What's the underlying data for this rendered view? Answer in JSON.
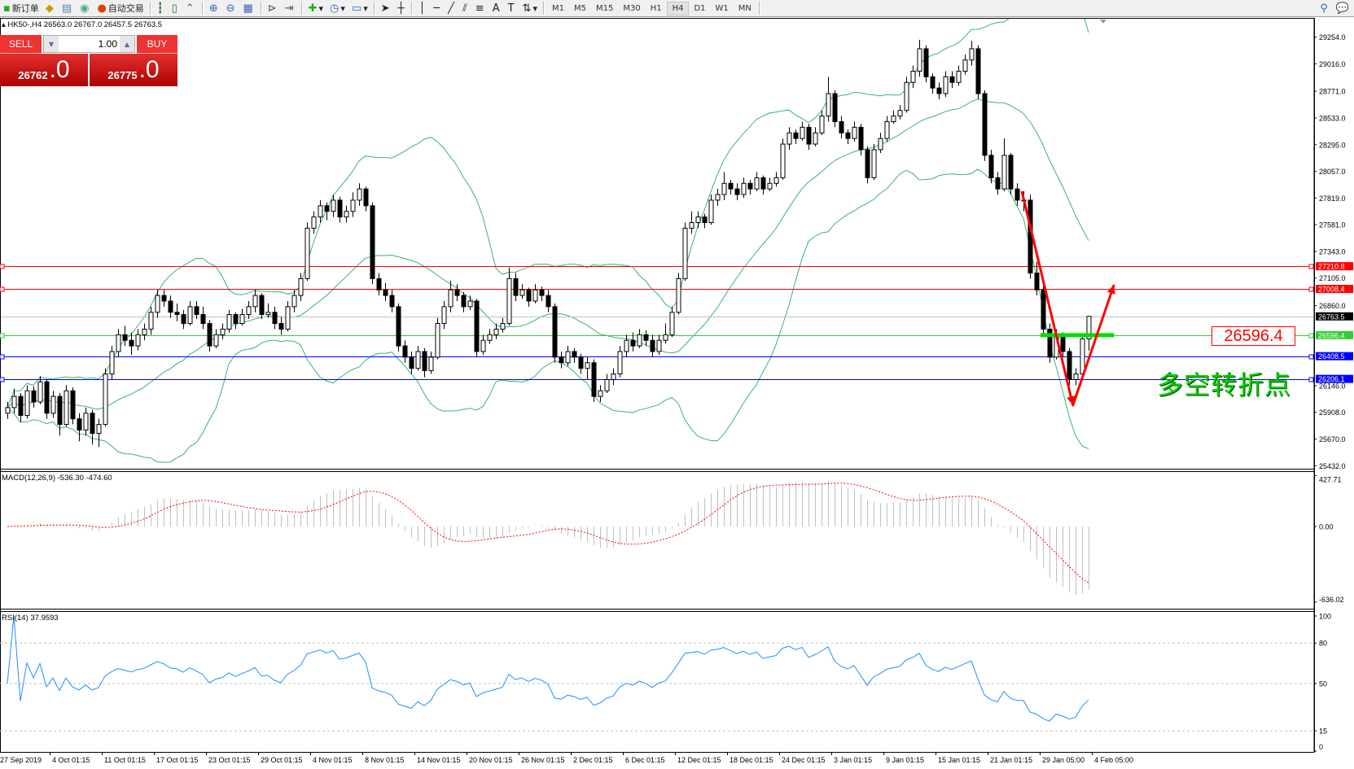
{
  "toolbar": {
    "new_order_label": "新订单",
    "auto_trading_label": "自动交易",
    "icons": [
      "new-order-icon",
      "market-watch-icon",
      "data-window-icon",
      "navigator-icon",
      "auto-trading-icon",
      "bar-chart-icon",
      "candlestick-icon",
      "line-chart-icon",
      "zoom-in-icon",
      "zoom-out-icon",
      "tile-windows-icon",
      "auto-scroll-icon",
      "chart-shift-icon",
      "indicators-icon",
      "periods-icon",
      "templates-icon",
      "cursor-icon",
      "crosshair-icon",
      "vertical-line-icon",
      "horizontal-line-icon",
      "trendline-icon",
      "equidistant-channel-icon",
      "fibonacci-icon",
      "text-icon",
      "text-label-icon",
      "arrows-icon"
    ],
    "timeframes": [
      "M1",
      "M5",
      "M15",
      "M30",
      "H1",
      "H4",
      "D1",
      "W1",
      "MN"
    ],
    "active_timeframe": "H4"
  },
  "chart_header": {
    "symbol_period": "HK50-,H4",
    "ohlc_text": "26563.0 26767.0 26457.5 26763.5"
  },
  "trade_panel": {
    "sell_label": "SELL",
    "buy_label": "BUY",
    "volume": "1.00",
    "sell_price_main": "26762",
    "sell_price_big": ".0",
    "buy_price_main": "26775",
    "buy_price_big": ".0"
  },
  "annotations": {
    "level_label": "26596.4",
    "chinese_text": "多空转折点",
    "arrow_color": "#ff0000",
    "arrow_points": [
      {
        "bar": 155.75,
        "price": 27880
      },
      {
        "bar": 163.6,
        "price": 25971
      },
      {
        "bar": 169.9,
        "price": 27045
      }
    ],
    "green_segment": {
      "from_bar": 158.6,
      "to_bar": 169.9,
      "price": 26596.4,
      "color": "#00dd00"
    }
  },
  "macd": {
    "label": "MACD(12,26,9) -536.30 -474.60",
    "params": [
      12,
      26,
      9
    ],
    "axis_labels": [
      "427.71",
      "0.00",
      "-636.02"
    ],
    "range": [
      -636.02,
      427.71
    ],
    "histogram_color": "#c0c0c0",
    "signal_color": "#ff0000"
  },
  "rsi": {
    "label": "RSI(14) 37.9593",
    "period": 14,
    "axis_labels": [
      "100",
      "80",
      "50",
      "15",
      "0"
    ],
    "levels": [
      80,
      50,
      15
    ],
    "color": "#1e90ff"
  },
  "chart_data": {
    "type": "candlestick",
    "symbol": "HK50-",
    "timeframe": "H4",
    "y_ticks": [
      "29254.0",
      "29016.0",
      "28771.0",
      "28533.0",
      "28295.0",
      "28057.0",
      "27819.0",
      "27581.0",
      "27343.0",
      "27105.0",
      "26860.0",
      "26146.0",
      "25908.0",
      "25670.0",
      "25432.0"
    ],
    "ylim": [
      25432,
      29400
    ],
    "x_tick_labels": [
      "27 Sep 2019",
      "4 Oct 01:15",
      "11 Oct 01:15",
      "17 Oct 01:15",
      "23 Oct 01:15",
      "29 Oct 01:15",
      "4 Nov 01:15",
      "8 Nov 01:15",
      "14 Nov 01:15",
      "20 Nov 01:15",
      "26 Nov 01:15",
      "2 Dec 01:15",
      "6 Dec 01:15",
      "12 Dec 01:15",
      "18 Dec 01:15",
      "24 Dec 01:15",
      "3 Jan 01:15",
      "9 Jan 01:15",
      "15 Jan 01:15",
      "21 Jan 01:15",
      "29 Jan 05:00",
      "4 Feb 05:00"
    ],
    "bollinger": {
      "period": 20,
      "deviation": 2,
      "color": "#3cb371"
    },
    "horizontal_lines": [
      {
        "price": 27210.8,
        "label": "27210.8",
        "color": "#ff0000"
      },
      {
        "price": 27008.4,
        "label": "27008.4",
        "color": "#ff0000"
      },
      {
        "price": 26763.5,
        "label": "26763.5",
        "color": "#c0c0c0",
        "label_bg": "#000000"
      },
      {
        "price": 26596.4,
        "label": "26596.4",
        "color": "#32cd32"
      },
      {
        "price": 26408.5,
        "label": "26408.5",
        "color": "#0000ff"
      },
      {
        "price": 26206.1,
        "label": "26206.1",
        "color": "#0000ff"
      }
    ],
    "ohlc": [
      [
        25900,
        26000,
        25850,
        25950
      ],
      [
        25950,
        26120,
        25900,
        26050
      ],
      [
        26050,
        26080,
        25820,
        25880
      ],
      [
        25880,
        26150,
        25850,
        26100
      ],
      [
        26100,
        26140,
        25950,
        26000
      ],
      [
        26000,
        26230,
        25980,
        26180
      ],
      [
        26180,
        26200,
        25850,
        25900
      ],
      [
        25900,
        26100,
        25860,
        26050
      ],
      [
        26050,
        26080,
        25700,
        25800
      ],
      [
        25800,
        26150,
        25780,
        26100
      ],
      [
        26100,
        26130,
        25800,
        25850
      ],
      [
        25850,
        25900,
        25650,
        25750
      ],
      [
        25750,
        25950,
        25700,
        25900
      ],
      [
        25900,
        25930,
        25620,
        25720
      ],
      [
        25720,
        25850,
        25600,
        25800
      ],
      [
        25800,
        26300,
        25780,
        26250
      ],
      [
        26250,
        26500,
        26200,
        26450
      ],
      [
        26450,
        26650,
        26400,
        26600
      ],
      [
        26600,
        26680,
        26500,
        26550
      ],
      [
        26550,
        26620,
        26420,
        26500
      ],
      [
        26500,
        26650,
        26460,
        26600
      ],
      [
        26600,
        26700,
        26550,
        26650
      ],
      [
        26650,
        26850,
        26600,
        26800
      ],
      [
        26800,
        27000,
        26750,
        26950
      ],
      [
        26950,
        27000,
        26850,
        26900
      ],
      [
        26900,
        26950,
        26750,
        26800
      ],
      [
        26800,
        26880,
        26720,
        26780
      ],
      [
        26780,
        26820,
        26650,
        26700
      ],
      [
        26700,
        26900,
        26680,
        26850
      ],
      [
        26850,
        26900,
        26740,
        26780
      ],
      [
        26780,
        26850,
        26650,
        26700
      ],
      [
        26700,
        26730,
        26450,
        26500
      ],
      [
        26500,
        26650,
        26480,
        26600
      ],
      [
        26600,
        26700,
        26560,
        26650
      ],
      [
        26650,
        26820,
        26620,
        26780
      ],
      [
        26780,
        26800,
        26650,
        26700
      ],
      [
        26700,
        26830,
        26680,
        26780
      ],
      [
        26780,
        26900,
        26740,
        26850
      ],
      [
        26850,
        27000,
        26800,
        26950
      ],
      [
        26950,
        26970,
        26740,
        26780
      ],
      [
        26780,
        26880,
        26750,
        26800
      ],
      [
        26800,
        26850,
        26650,
        26700
      ],
      [
        26700,
        26760,
        26600,
        26650
      ],
      [
        26650,
        26900,
        26630,
        26850
      ],
      [
        26850,
        27000,
        26800,
        26950
      ],
      [
        26950,
        27150,
        26900,
        27100
      ],
      [
        27100,
        27600,
        27080,
        27550
      ],
      [
        27550,
        27700,
        27500,
        27650
      ],
      [
        27650,
        27800,
        27600,
        27750
      ],
      [
        27750,
        27780,
        27620,
        27700
      ],
      [
        27700,
        27850,
        27650,
        27800
      ],
      [
        27800,
        27830,
        27600,
        27650
      ],
      [
        27650,
        27750,
        27600,
        27700
      ],
      [
        27700,
        27870,
        27650,
        27800
      ],
      [
        27800,
        27950,
        27750,
        27900
      ],
      [
        27900,
        27920,
        27700,
        27750
      ],
      [
        27750,
        27780,
        27050,
        27100
      ],
      [
        27100,
        27150,
        26950,
        27000
      ],
      [
        27000,
        27060,
        26900,
        26950
      ],
      [
        26950,
        27000,
        26800,
        26850
      ],
      [
        26850,
        26880,
        26450,
        26500
      ],
      [
        26500,
        26550,
        26350,
        26400
      ],
      [
        26400,
        26450,
        26250,
        26300
      ],
      [
        26300,
        26500,
        26280,
        26450
      ],
      [
        26450,
        26480,
        26220,
        26280
      ],
      [
        26280,
        26450,
        26250,
        26400
      ],
      [
        26400,
        26750,
        26380,
        26700
      ],
      [
        26700,
        26900,
        26650,
        26850
      ],
      [
        26850,
        27080,
        26800,
        27000
      ],
      [
        27000,
        27050,
        26900,
        26950
      ],
      [
        26950,
        26980,
        26800,
        26850
      ],
      [
        26850,
        26950,
        26820,
        26900
      ],
      [
        26900,
        26920,
        26400,
        26450
      ],
      [
        26450,
        26600,
        26420,
        26550
      ],
      [
        26550,
        26650,
        26520,
        26600
      ],
      [
        26600,
        26700,
        26560,
        26650
      ],
      [
        26650,
        26750,
        26620,
        26700
      ],
      [
        26700,
        27200,
        26680,
        27100
      ],
      [
        27100,
        27150,
        26900,
        26950
      ],
      [
        26950,
        27050,
        26920,
        27000
      ],
      [
        27000,
        27020,
        26850,
        26900
      ],
      [
        26900,
        27050,
        26880,
        27000
      ],
      [
        27000,
        27030,
        26900,
        26950
      ],
      [
        26950,
        27000,
        26800,
        26850
      ],
      [
        26850,
        26880,
        26350,
        26400
      ],
      [
        26400,
        26450,
        26300,
        26350
      ],
      [
        26350,
        26500,
        26320,
        26450
      ],
      [
        26450,
        26480,
        26350,
        26400
      ],
      [
        26400,
        26430,
        26250,
        26300
      ],
      [
        26300,
        26400,
        26200,
        26350
      ],
      [
        26350,
        26380,
        26000,
        26050
      ],
      [
        26050,
        26150,
        26000,
        26100
      ],
      [
        26100,
        26250,
        26080,
        26200
      ],
      [
        26200,
        26300,
        26150,
        26250
      ],
      [
        26250,
        26500,
        26220,
        26450
      ],
      [
        26450,
        26600,
        26400,
        26550
      ],
      [
        26550,
        26620,
        26450,
        26500
      ],
      [
        26500,
        26650,
        26480,
        26600
      ],
      [
        26600,
        26640,
        26500,
        26550
      ],
      [
        26550,
        26600,
        26400,
        26450
      ],
      [
        26450,
        26600,
        26420,
        26550
      ],
      [
        26550,
        26700,
        26520,
        26600
      ],
      [
        26600,
        26850,
        26580,
        26800
      ],
      [
        26800,
        27150,
        26780,
        27100
      ],
      [
        27100,
        27600,
        27080,
        27550
      ],
      [
        27550,
        27700,
        27500,
        27600
      ],
      [
        27600,
        27700,
        27550,
        27650
      ],
      [
        27650,
        27680,
        27550,
        27600
      ],
      [
        27600,
        27850,
        27580,
        27800
      ],
      [
        27800,
        27900,
        27750,
        27850
      ],
      [
        27850,
        28050,
        27800,
        27950
      ],
      [
        27950,
        27980,
        27850,
        27900
      ],
      [
        27900,
        27950,
        27800,
        27850
      ],
      [
        27850,
        28000,
        27820,
        27950
      ],
      [
        27950,
        27980,
        27850,
        27900
      ],
      [
        27900,
        28050,
        27880,
        28000
      ],
      [
        28000,
        28020,
        27850,
        27900
      ],
      [
        27900,
        28000,
        27880,
        27950
      ],
      [
        27950,
        28050,
        27920,
        28000
      ],
      [
        28000,
        28350,
        27980,
        28300
      ],
      [
        28300,
        28450,
        28250,
        28400
      ],
      [
        28400,
        28430,
        28300,
        28350
      ],
      [
        28350,
        28500,
        28330,
        28450
      ],
      [
        28450,
        28480,
        28250,
        28300
      ],
      [
        28300,
        28450,
        28280,
        28400
      ],
      [
        28400,
        28600,
        28380,
        28550
      ],
      [
        28550,
        28900,
        28500,
        28750
      ],
      [
        28750,
        28780,
        28450,
        28500
      ],
      [
        28500,
        28550,
        28350,
        28400
      ],
      [
        28400,
        28430,
        28300,
        28350
      ],
      [
        28350,
        28500,
        28320,
        28450
      ],
      [
        28450,
        28480,
        28200,
        28250
      ],
      [
        28250,
        28280,
        27950,
        28000
      ],
      [
        28000,
        28300,
        27980,
        28250
      ],
      [
        28250,
        28400,
        28220,
        28350
      ],
      [
        28350,
        28550,
        28320,
        28500
      ],
      [
        28500,
        28600,
        28480,
        28550
      ],
      [
        28550,
        28650,
        28520,
        28600
      ],
      [
        28600,
        28900,
        28580,
        28850
      ],
      [
        28850,
        29000,
        28800,
        28950
      ],
      [
        28950,
        29230,
        28900,
        29150
      ],
      [
        29150,
        29180,
        28850,
        28900
      ],
      [
        28900,
        28930,
        28750,
        28800
      ],
      [
        28800,
        28850,
        28700,
        28750
      ],
      [
        28750,
        28950,
        28720,
        28900
      ],
      [
        28900,
        28950,
        28800,
        28850
      ],
      [
        28850,
        29000,
        28820,
        28950
      ],
      [
        28950,
        29100,
        28920,
        29050
      ],
      [
        29050,
        29220,
        29000,
        29150
      ],
      [
        29150,
        29180,
        28700,
        28750
      ],
      [
        28750,
        28780,
        28150,
        28200
      ],
      [
        28200,
        28250,
        27950,
        28000
      ],
      [
        28000,
        28050,
        27850,
        27900
      ],
      [
        27900,
        28350,
        27880,
        28200
      ],
      [
        28200,
        28220,
        27850,
        27900
      ],
      [
        27900,
        27950,
        27750,
        27800
      ],
      [
        27800,
        27880,
        27700,
        27800
      ],
      [
        27800,
        27850,
        27100,
        27150
      ],
      [
        27150,
        27250,
        26950,
        27000
      ],
      [
        27000,
        27050,
        26600,
        26650
      ],
      [
        26650,
        26700,
        26350,
        26400
      ],
      [
        26400,
        26650,
        26380,
        26600
      ],
      [
        26600,
        26620,
        26400,
        26450
      ],
      [
        26450,
        26480,
        26150,
        26200
      ],
      [
        26200,
        26300,
        26150,
        26250
      ],
      [
        26250,
        26600,
        26220,
        26563
      ],
      [
        26563,
        26767,
        26457.5,
        26763.5
      ]
    ]
  }
}
